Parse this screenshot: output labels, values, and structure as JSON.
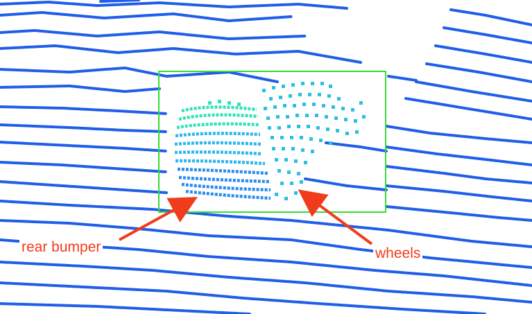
{
  "annotations": {
    "rear_bumper": "rear bumper",
    "wheels": "wheels"
  },
  "colors": {
    "scan_lines": "#1f5ee8",
    "car_top": "#2fe2b8",
    "car_mid": "#2ab8ee",
    "car_low": "#2a8cf0",
    "bounding_box": "#33dd33",
    "arrow": "#f03c1c",
    "background": "#ffffff"
  },
  "objects": {
    "point_cloud": "lidar-point-cloud",
    "detection": "car-bounding-box"
  }
}
